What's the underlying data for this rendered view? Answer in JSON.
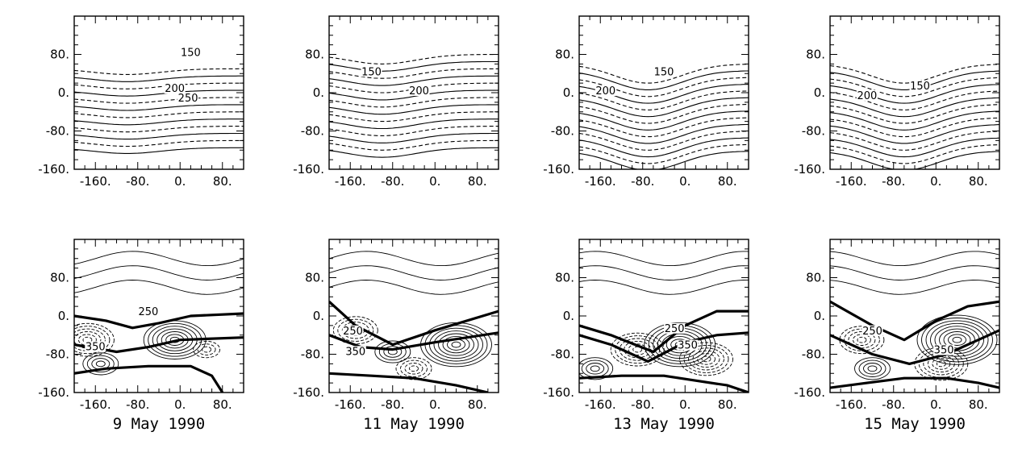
{
  "figure": {
    "dates": [
      "9 May 1990",
      "11 May 1990",
      "13 May 1990",
      "15 May 1990"
    ]
  },
  "chart_data": [
    {
      "type": "heatmap",
      "row": "top",
      "date_label": "9 May 1990",
      "x_ticks": [
        "-160.",
        "-80.",
        "0.",
        "80."
      ],
      "y_ticks": [
        "80.",
        "0.",
        "-80.",
        "-160."
      ],
      "xlim": [
        -200,
        120
      ],
      "ylim": [
        -160,
        160
      ],
      "trough_center_x": -100,
      "trough_depth": 0.3,
      "base_y": 50,
      "spacing": 15,
      "count": 12,
      "contour_labels": [
        {
          "text": "150",
          "x": 20,
          "y": 80
        },
        {
          "text": "200",
          "x": -10,
          "y": 5
        },
        {
          "text": "250",
          "x": 15,
          "y": -15
        }
      ]
    },
    {
      "type": "heatmap",
      "row": "top",
      "date_label": "11 May 1990",
      "x_ticks": [
        "-160.",
        "-80.",
        "0.",
        "80."
      ],
      "y_ticks": [
        "80.",
        "0.",
        "-80.",
        "-160."
      ],
      "xlim": [
        -200,
        120
      ],
      "ylim": [
        -160,
        160
      ],
      "trough_center_x": -100,
      "trough_depth": 0.5,
      "base_y": 80,
      "spacing": 15,
      "count": 14,
      "contour_labels": [
        {
          "text": "150",
          "x": -120,
          "y": 40
        },
        {
          "text": "200",
          "x": -30,
          "y": 0
        }
      ]
    },
    {
      "type": "heatmap",
      "row": "top",
      "date_label": "13 May 1990",
      "x_ticks": [
        "-160.",
        "-80.",
        "0.",
        "80."
      ],
      "y_ticks": [
        "80.",
        "0.",
        "-80.",
        "-160."
      ],
      "xlim": [
        -200,
        120
      ],
      "ylim": [
        -160,
        160
      ],
      "trough_center_x": -70,
      "trough_depth": 1.0,
      "base_y": 60,
      "spacing": 14,
      "count": 14,
      "contour_labels": [
        {
          "text": "150",
          "x": -40,
          "y": 40
        },
        {
          "text": "200",
          "x": -150,
          "y": 0
        }
      ]
    },
    {
      "type": "heatmap",
      "row": "top",
      "date_label": "15 May 1990",
      "x_ticks": [
        "-160.",
        "-80.",
        "0.",
        "80."
      ],
      "y_ticks": [
        "80.",
        "0.",
        "-80.",
        "-160."
      ],
      "xlim": [
        -200,
        120
      ],
      "ylim": [
        -160,
        160
      ],
      "trough_center_x": -60,
      "trough_depth": 1.0,
      "base_y": 60,
      "spacing": 14,
      "count": 14,
      "contour_labels": [
        {
          "text": "200",
          "x": -130,
          "y": -10
        },
        {
          "text": "150",
          "x": -30,
          "y": 10
        }
      ]
    },
    {
      "type": "heatmap",
      "row": "bottom",
      "date_label": "9 May 1990",
      "x_ticks": [
        "-160.",
        "-80.",
        "0.",
        "80."
      ],
      "y_ticks": [
        "80.",
        "0.",
        "-80.",
        "-160."
      ],
      "xlim": [
        -200,
        120
      ],
      "ylim": [
        -160,
        160
      ],
      "thick_lines": [
        [
          [
            -200,
            0
          ],
          [
            -140,
            -10
          ],
          [
            -90,
            -25
          ],
          [
            -40,
            -15
          ],
          [
            20,
            0
          ],
          [
            120,
            5
          ]
        ],
        [
          [
            -200,
            -60
          ],
          [
            -120,
            -75
          ],
          [
            -60,
            -65
          ],
          [
            0,
            -50
          ],
          [
            120,
            -45
          ]
        ],
        [
          [
            -200,
            -120
          ],
          [
            -140,
            -110
          ],
          [
            -60,
            -105
          ],
          [
            20,
            -105
          ],
          [
            60,
            -125
          ],
          [
            80,
            -160
          ]
        ]
      ],
      "centers": [
        {
          "x": -10,
          "y": -50,
          "sign": 1,
          "n": 7
        },
        {
          "x": -175,
          "y": -50,
          "sign": -1,
          "n": 6
        },
        {
          "x": -150,
          "y": -100,
          "sign": 1,
          "n": 4
        },
        {
          "x": 50,
          "y": -70,
          "sign": -1,
          "n": 3
        }
      ],
      "contour_labels": [
        {
          "text": "250",
          "x": -60,
          "y": 5
        },
        {
          "text": "350",
          "x": -160,
          "y": -68
        }
      ]
    },
    {
      "type": "heatmap",
      "row": "bottom",
      "date_label": "11 May 1990",
      "x_ticks": [
        "-160.",
        "-80.",
        "0.",
        "80."
      ],
      "y_ticks": [
        "80.",
        "0.",
        "-80.",
        "-160."
      ],
      "xlim": [
        -200,
        120
      ],
      "ylim": [
        -160,
        160
      ],
      "thick_lines": [
        [
          [
            -200,
            30
          ],
          [
            -150,
            -20
          ],
          [
            -80,
            -60
          ],
          [
            0,
            -30
          ],
          [
            120,
            10
          ]
        ],
        [
          [
            -200,
            -40
          ],
          [
            -140,
            -65
          ],
          [
            -80,
            -70
          ],
          [
            0,
            -55
          ],
          [
            120,
            -35
          ]
        ],
        [
          [
            -200,
            -120
          ],
          [
            -120,
            -125
          ],
          [
            -40,
            -130
          ],
          [
            40,
            -145
          ],
          [
            100,
            -160
          ]
        ]
      ],
      "centers": [
        {
          "x": 40,
          "y": -60,
          "sign": 1,
          "n": 8
        },
        {
          "x": -150,
          "y": -30,
          "sign": -1,
          "n": 5
        },
        {
          "x": -80,
          "y": -75,
          "sign": 1,
          "n": 4
        },
        {
          "x": -40,
          "y": -110,
          "sign": -1,
          "n": 4
        }
      ],
      "contour_labels": [
        {
          "text": "250",
          "x": -155,
          "y": -35
        },
        {
          "text": "350",
          "x": -150,
          "y": -78
        }
      ]
    },
    {
      "type": "heatmap",
      "row": "bottom",
      "date_label": "13 May 1990",
      "x_ticks": [
        "-160.",
        "-80.",
        "0.",
        "80."
      ],
      "y_ticks": [
        "80.",
        "0.",
        "-80.",
        "-160."
      ],
      "xlim": [
        -200,
        120
      ],
      "ylim": [
        -160,
        160
      ],
      "thick_lines": [
        [
          [
            -200,
            -20
          ],
          [
            -140,
            -40
          ],
          [
            -60,
            -75
          ],
          [
            0,
            -20
          ],
          [
            60,
            10
          ],
          [
            120,
            10
          ]
        ],
        [
          [
            -200,
            -40
          ],
          [
            -140,
            -60
          ],
          [
            -70,
            -95
          ],
          [
            0,
            -55
          ],
          [
            60,
            -40
          ],
          [
            120,
            -35
          ]
        ],
        [
          [
            -200,
            -130
          ],
          [
            -120,
            -125
          ],
          [
            -40,
            -125
          ],
          [
            20,
            -135
          ],
          [
            80,
            -145
          ],
          [
            120,
            -160
          ]
        ]
      ],
      "centers": [
        {
          "x": -10,
          "y": -60,
          "sign": 1,
          "n": 8
        },
        {
          "x": -90,
          "y": -70,
          "sign": -1,
          "n": 6
        },
        {
          "x": 40,
          "y": -90,
          "sign": -1,
          "n": 6
        },
        {
          "x": -170,
          "y": -110,
          "sign": 1,
          "n": 4
        }
      ],
      "contour_labels": [
        {
          "text": "250",
          "x": -20,
          "y": -30
        },
        {
          "text": "350",
          "x": 5,
          "y": -65
        }
      ]
    },
    {
      "type": "heatmap",
      "row": "bottom",
      "date_label": "15 May 1990",
      "x_ticks": [
        "-160.",
        "-80.",
        "0.",
        "80."
      ],
      "y_ticks": [
        "80.",
        "0.",
        "-80.",
        "-160."
      ],
      "xlim": [
        -200,
        120
      ],
      "ylim": [
        -160,
        160
      ],
      "thick_lines": [
        [
          [
            -200,
            30
          ],
          [
            -120,
            -20
          ],
          [
            -60,
            -50
          ],
          [
            0,
            -10
          ],
          [
            60,
            20
          ],
          [
            120,
            30
          ]
        ],
        [
          [
            -200,
            -40
          ],
          [
            -120,
            -80
          ],
          [
            -50,
            -100
          ],
          [
            20,
            -80
          ],
          [
            80,
            -50
          ],
          [
            120,
            -30
          ]
        ],
        [
          [
            -200,
            -150
          ],
          [
            -130,
            -140
          ],
          [
            -60,
            -130
          ],
          [
            20,
            -130
          ],
          [
            80,
            -140
          ],
          [
            120,
            -150
          ]
        ]
      ],
      "centers": [
        {
          "x": 40,
          "y": -50,
          "sign": 1,
          "n": 9
        },
        {
          "x": 10,
          "y": -100,
          "sign": -1,
          "n": 6
        },
        {
          "x": -140,
          "y": -50,
          "sign": -1,
          "n": 5
        },
        {
          "x": -120,
          "y": -110,
          "sign": 1,
          "n": 4
        }
      ],
      "contour_labels": [
        {
          "text": "250",
          "x": -120,
          "y": -35
        },
        {
          "text": "350",
          "x": 15,
          "y": -75
        }
      ]
    }
  ]
}
